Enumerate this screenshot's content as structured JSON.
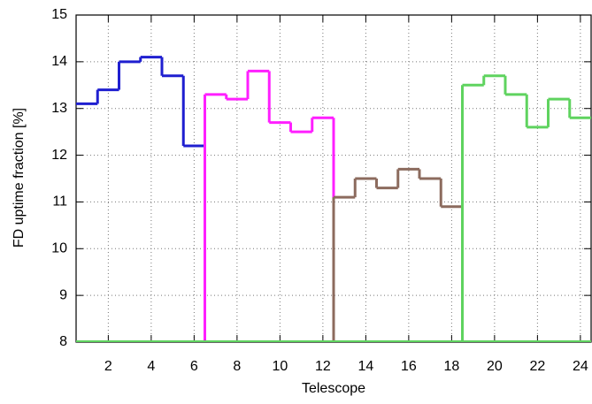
{
  "chart_data": {
    "type": "step",
    "x_label": "Telescope",
    "y_label": "FD uptime fraction [%]",
    "xlim": [
      0.5,
      24.5
    ],
    "xticks": [
      2,
      4,
      6,
      8,
      10,
      12,
      14,
      16,
      18,
      20,
      22,
      24
    ],
    "ylim": [
      8,
      15
    ],
    "yticks": [
      8,
      9,
      10,
      11,
      12,
      13,
      14,
      15
    ],
    "grid": true,
    "series": [
      {
        "color": "#1f1fd0",
        "x": [
          1,
          2,
          3,
          4,
          5,
          6
        ],
        "values": [
          13.1,
          13.4,
          14.0,
          14.1,
          13.7,
          12.2
        ]
      },
      {
        "color": "#ff1fff",
        "x": [
          7,
          8,
          9,
          10,
          11,
          12
        ],
        "values": [
          13.3,
          13.2,
          13.8,
          12.7,
          12.5,
          12.8
        ]
      },
      {
        "color": "#8c6b5e",
        "x": [
          13,
          14,
          15,
          16,
          17,
          18
        ],
        "values": [
          11.1,
          11.5,
          11.3,
          11.7,
          11.5,
          10.9
        ]
      },
      {
        "color": "#5fd35f",
        "x": [
          19,
          20,
          21,
          22,
          23,
          24
        ],
        "values": [
          13.5,
          13.7,
          13.3,
          12.6,
          13.2,
          12.8
        ]
      }
    ]
  }
}
